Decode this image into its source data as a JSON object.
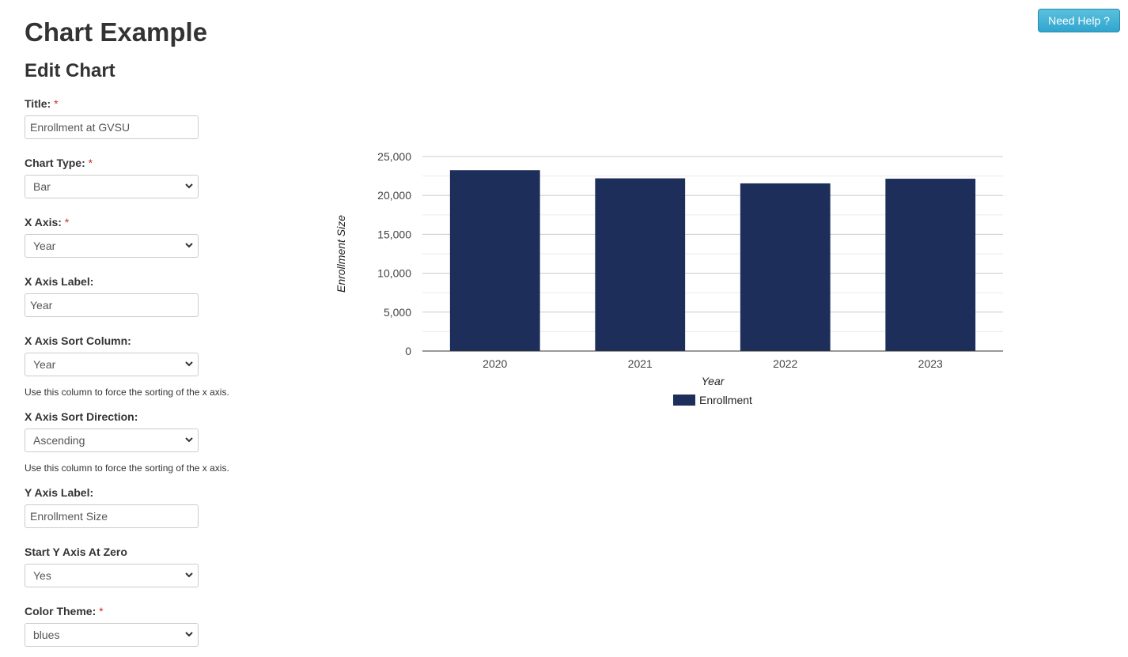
{
  "header": {
    "page_title": "Chart Example",
    "section_title": "Edit Chart",
    "help_button": "Need Help ?"
  },
  "form": {
    "title": {
      "label": "Title:",
      "required_mark": "*",
      "value": "Enrollment at GVSU"
    },
    "chart_type": {
      "label": "Chart Type:",
      "required_mark": "*",
      "value": "Bar"
    },
    "x_axis": {
      "label": "X Axis:",
      "required_mark": "*",
      "value": "Year"
    },
    "x_axis_label": {
      "label": "X Axis Label:",
      "value": "Year"
    },
    "x_axis_sort_column": {
      "label": "X Axis Sort Column:",
      "value": "Year",
      "help": "Use this column to force the sorting of the x axis."
    },
    "x_axis_sort_direction": {
      "label": "X Axis Sort Direction:",
      "value": "Ascending",
      "help": "Use this column to force the sorting of the x axis."
    },
    "y_axis_label": {
      "label": "Y Axis Label:",
      "value": "Enrollment Size"
    },
    "start_y_axis_at_zero": {
      "label": "Start Y Axis At Zero",
      "value": "Yes"
    },
    "color_theme": {
      "label": "Color Theme:",
      "required_mark": "*",
      "value": "blues"
    }
  },
  "colors": {
    "bar": "#1c2e59",
    "help_button": "#31a5cf",
    "required": "#c9302c"
  },
  "chart_data": {
    "type": "bar",
    "categories": [
      "2020",
      "2021",
      "2022",
      "2023"
    ],
    "series": [
      {
        "name": "Enrollment",
        "values": [
          23250,
          22200,
          21550,
          22150
        ]
      }
    ],
    "xlabel": "Year",
    "ylabel": "Enrollment Size",
    "ylim": [
      0,
      25000
    ],
    "yticks": [
      "0",
      "5,000",
      "10,000",
      "15,000",
      "20,000",
      "25,000"
    ],
    "grid": true,
    "legend": "bottom"
  }
}
